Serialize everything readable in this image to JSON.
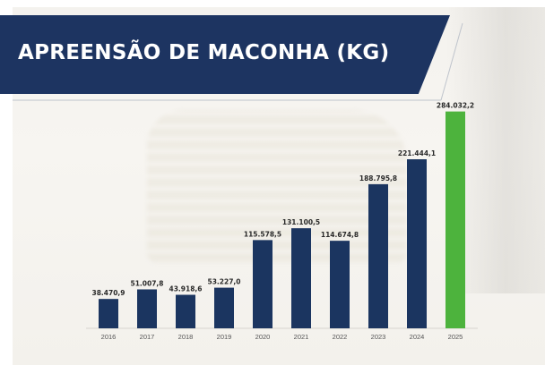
{
  "header": {
    "title": "APREENSÃO DE MACONHA (KG)"
  },
  "colors": {
    "banner": "#1d3461",
    "bar": "#1b3560",
    "highlight_bar": "#4db33d"
  },
  "chart_data": {
    "type": "bar",
    "title": "APREENSÃO DE MACONHA (KG)",
    "categories": [
      "2016",
      "2017",
      "2018",
      "2019",
      "2020",
      "2021",
      "2022",
      "2023",
      "2024",
      "2025"
    ],
    "values": [
      38470.9,
      51007.8,
      43918.6,
      53227.0,
      115578.5,
      131100.5,
      114674.8,
      188795.8,
      221444.1,
      284032.2
    ],
    "value_labels": [
      "38.470,9",
      "51.007,8",
      "43.918,6",
      "53.227,0",
      "115.578,5",
      "131.100,5",
      "114.674,8",
      "188.795,8",
      "221.444,1",
      "284.032,2"
    ],
    "highlight_index": 9,
    "ylim": [
      0,
      300000
    ],
    "grid": false,
    "legend": false,
    "xlabel": "",
    "ylabel": ""
  }
}
